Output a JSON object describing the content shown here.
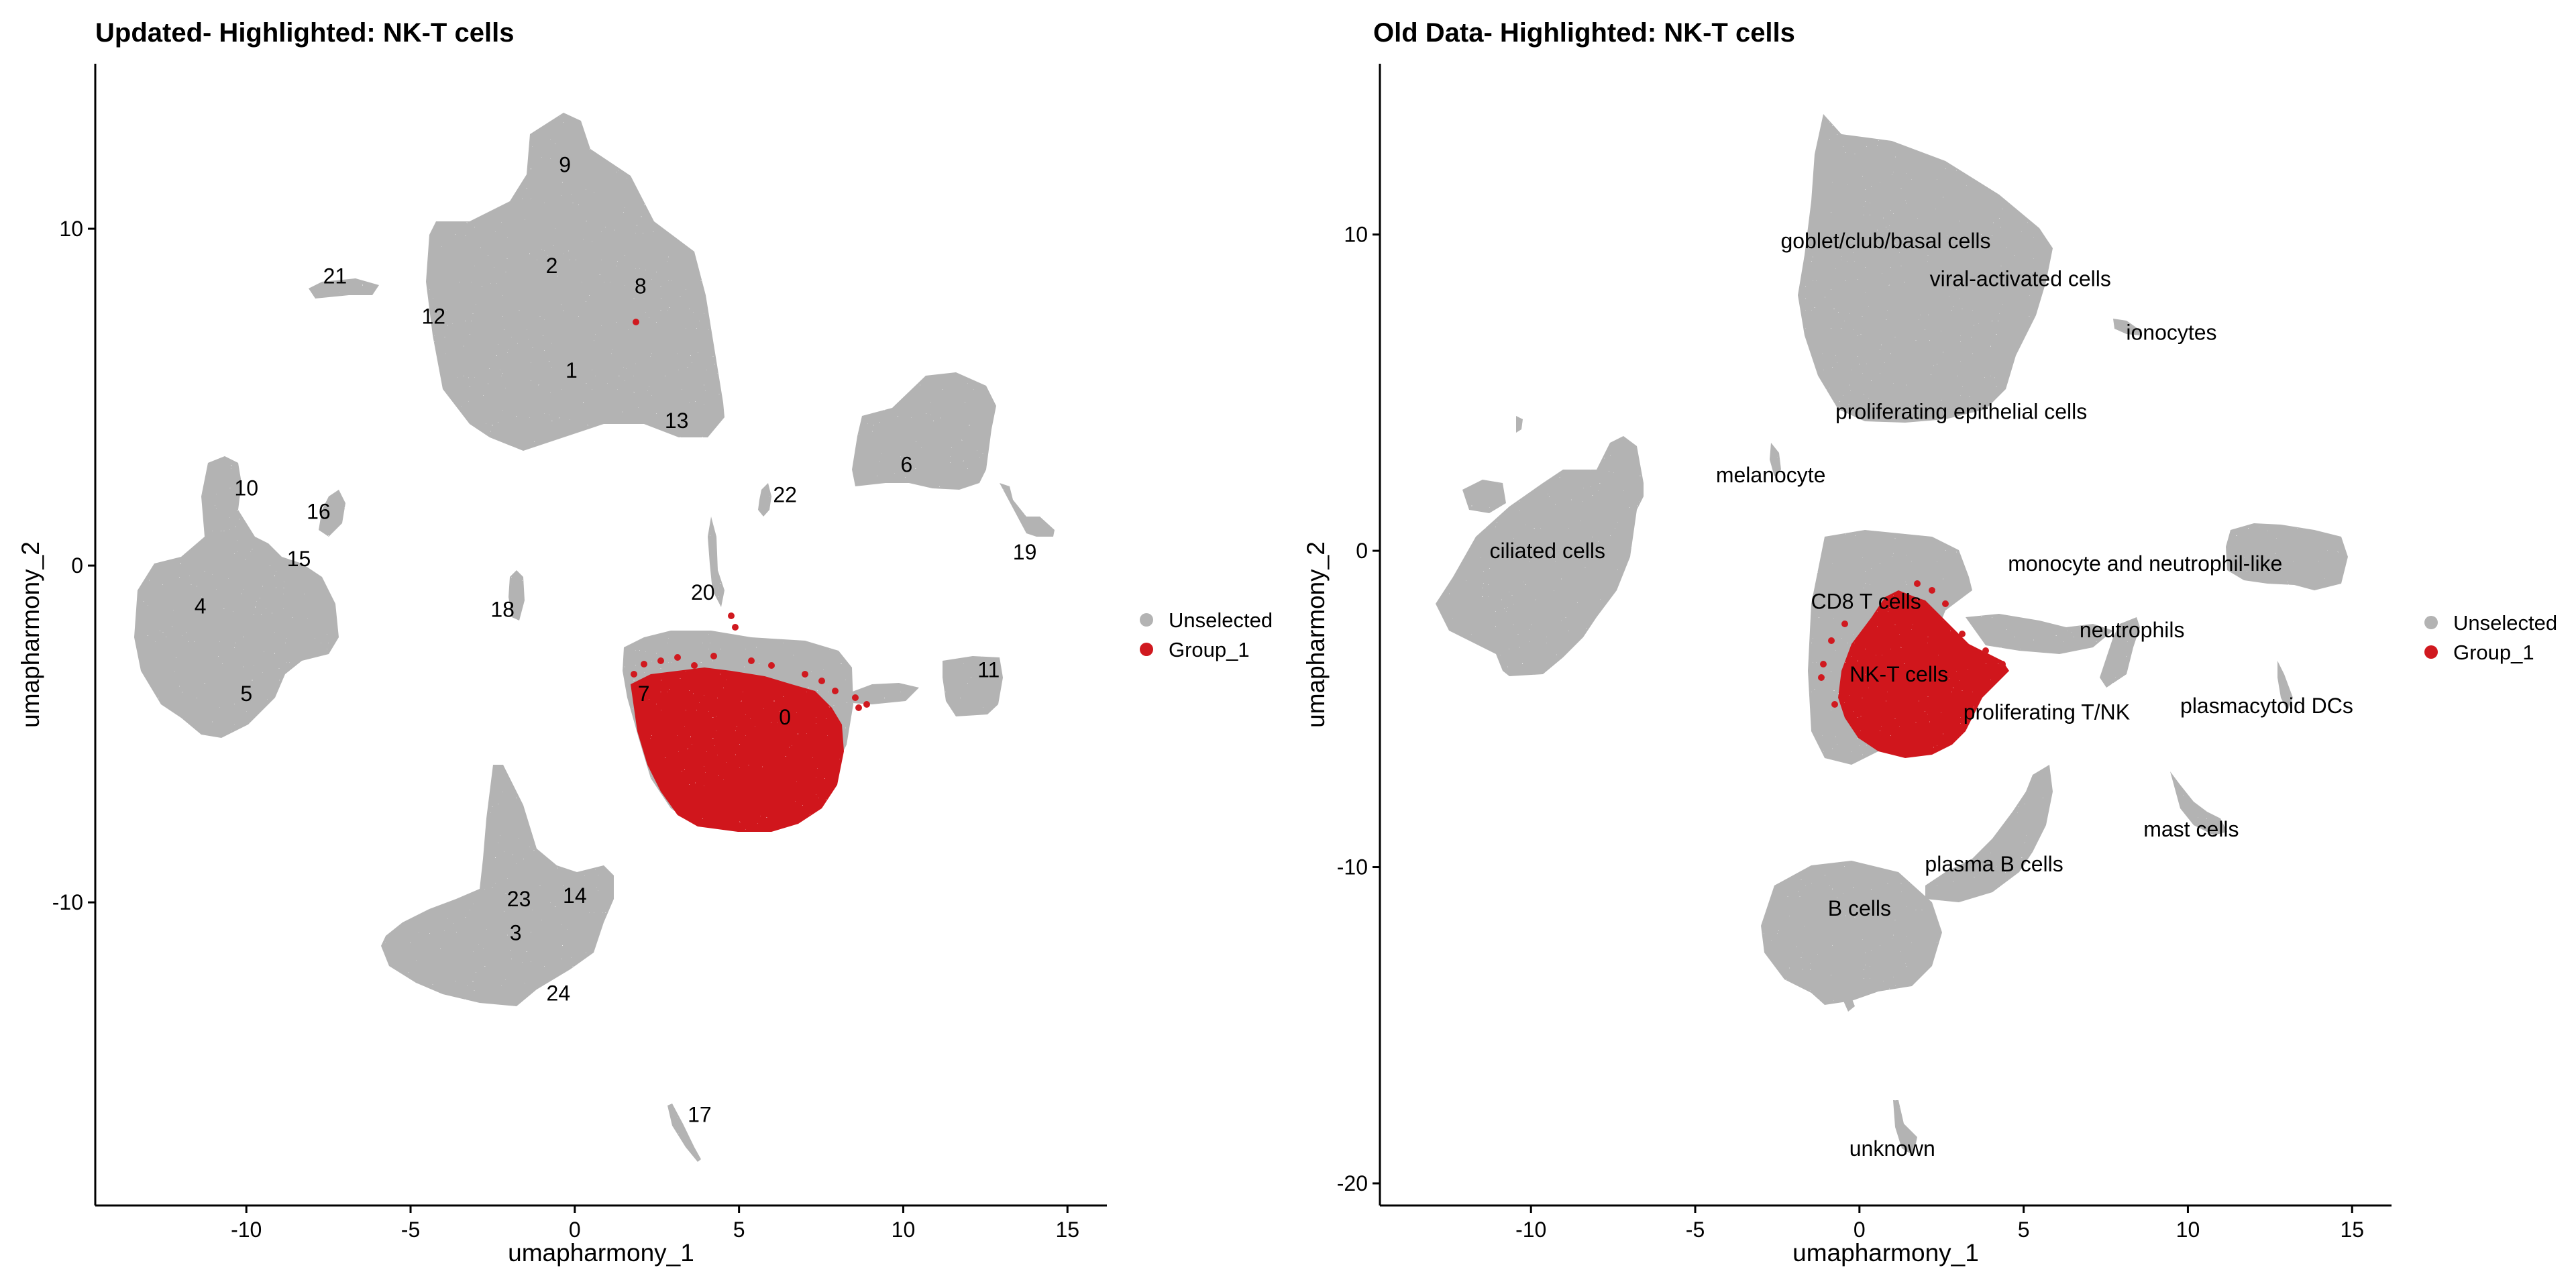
{
  "colors": {
    "unselected": "#b3b3b3",
    "group_1": "#d0191f",
    "axis": "#000000"
  },
  "chart_data": [
    {
      "type": "scatter",
      "title": "Updated- Highlighted: NK-T cells",
      "xlabel": "umapharmony_1",
      "ylabel": "umapharmony_2",
      "xlim": [
        -14.6,
        16.2
      ],
      "ylim": [
        -19.0,
        14.9
      ],
      "xticks": [
        -10,
        -5,
        0,
        5,
        10,
        15
      ],
      "yticks": [
        -10,
        0,
        10
      ],
      "grid": false,
      "legend": {
        "position": "right",
        "entries": [
          "Unselected",
          "Group_1"
        ]
      },
      "series": [
        {
          "name": "Unselected",
          "color": "#b3b3b3"
        },
        {
          "name": "Group_1",
          "color": "#d0191f"
        }
      ],
      "cluster_labels": [
        {
          "text": "9",
          "x": -0.3,
          "y": 11.9
        },
        {
          "text": "2",
          "x": -0.7,
          "y": 8.9
        },
        {
          "text": "8",
          "x": 2.0,
          "y": 8.3
        },
        {
          "text": "21",
          "x": -7.3,
          "y": 8.6
        },
        {
          "text": "12",
          "x": -4.3,
          "y": 7.4
        },
        {
          "text": "1",
          "x": -0.1,
          "y": 5.8
        },
        {
          "text": "13",
          "x": 3.1,
          "y": 4.3
        },
        {
          "text": "22",
          "x": 6.4,
          "y": 2.1
        },
        {
          "text": "6",
          "x": 10.1,
          "y": 3.0
        },
        {
          "text": "10",
          "x": -10.0,
          "y": 2.3
        },
        {
          "text": "16",
          "x": -7.8,
          "y": 1.6
        },
        {
          "text": "15",
          "x": -8.4,
          "y": 0.2
        },
        {
          "text": "19",
          "x": 13.7,
          "y": 0.4
        },
        {
          "text": "4",
          "x": -11.4,
          "y": -1.2
        },
        {
          "text": "20",
          "x": 3.9,
          "y": -0.8
        },
        {
          "text": "18",
          "x": -2.2,
          "y": -1.3
        },
        {
          "text": "11",
          "x": 12.6,
          "y": -3.1
        },
        {
          "text": "5",
          "x": -10.0,
          "y": -3.8
        },
        {
          "text": "7",
          "x": 2.1,
          "y": -3.8
        },
        {
          "text": "0",
          "x": 6.4,
          "y": -4.5
        },
        {
          "text": "14",
          "x": 0.0,
          "y": -9.8
        },
        {
          "text": "23",
          "x": -1.7,
          "y": -9.9
        },
        {
          "text": "3",
          "x": -1.8,
          "y": -10.9
        },
        {
          "text": "24",
          "x": -0.5,
          "y": -12.7
        },
        {
          "text": "17",
          "x": 3.8,
          "y": -16.3
        }
      ]
    },
    {
      "type": "scatter",
      "title": "Old Data- Highlighted: NK-T cells",
      "xlabel": "umapharmony_1",
      "ylabel": "umapharmony_2",
      "xlim": [
        -14.6,
        16.2
      ],
      "ylim": [
        -20.7,
        15.4
      ],
      "xticks": [
        -10,
        -5,
        0,
        5,
        10,
        15
      ],
      "yticks": [
        -20,
        -10,
        0,
        10
      ],
      "grid": false,
      "legend": {
        "position": "right",
        "entries": [
          "Unselected",
          "Group_1"
        ]
      },
      "series": [
        {
          "name": "Unselected",
          "color": "#b3b3b3"
        },
        {
          "name": "Group_1",
          "color": "#d0191f"
        }
      ],
      "cluster_labels": [
        {
          "text": "goblet/club/basal cells",
          "x": 0.8,
          "y": 9.8
        },
        {
          "text": "viral-activated cells",
          "x": 4.9,
          "y": 8.6
        },
        {
          "text": "ionocytes",
          "x": 9.5,
          "y": 6.9
        },
        {
          "text": "proliferating epithelial cells",
          "x": 3.1,
          "y": 4.4
        },
        {
          "text": "melanocyte",
          "x": -2.7,
          "y": 2.4
        },
        {
          "text": "ciliated cells",
          "x": -9.5,
          "y": 0.0
        },
        {
          "text": "monocyte and neutrophil-like",
          "x": 8.7,
          "y": -0.4
        },
        {
          "text": "CD8 T cells",
          "x": 0.2,
          "y": -1.6
        },
        {
          "text": "neutrophils",
          "x": 8.3,
          "y": -2.5
        },
        {
          "text": "NK-T cells",
          "x": 1.2,
          "y": -3.9
        },
        {
          "text": "proliferating T/NK",
          "x": 5.7,
          "y": -5.1
        },
        {
          "text": "plasmacytoid DCs",
          "x": 12.4,
          "y": -4.9
        },
        {
          "text": "mast cells",
          "x": 10.1,
          "y": -8.8
        },
        {
          "text": "plasma B cells",
          "x": 4.1,
          "y": -9.9
        },
        {
          "text": "B cells",
          "x": 0.0,
          "y": -11.3
        },
        {
          "text": "unknown",
          "x": 1.0,
          "y": -18.9
        }
      ]
    }
  ]
}
